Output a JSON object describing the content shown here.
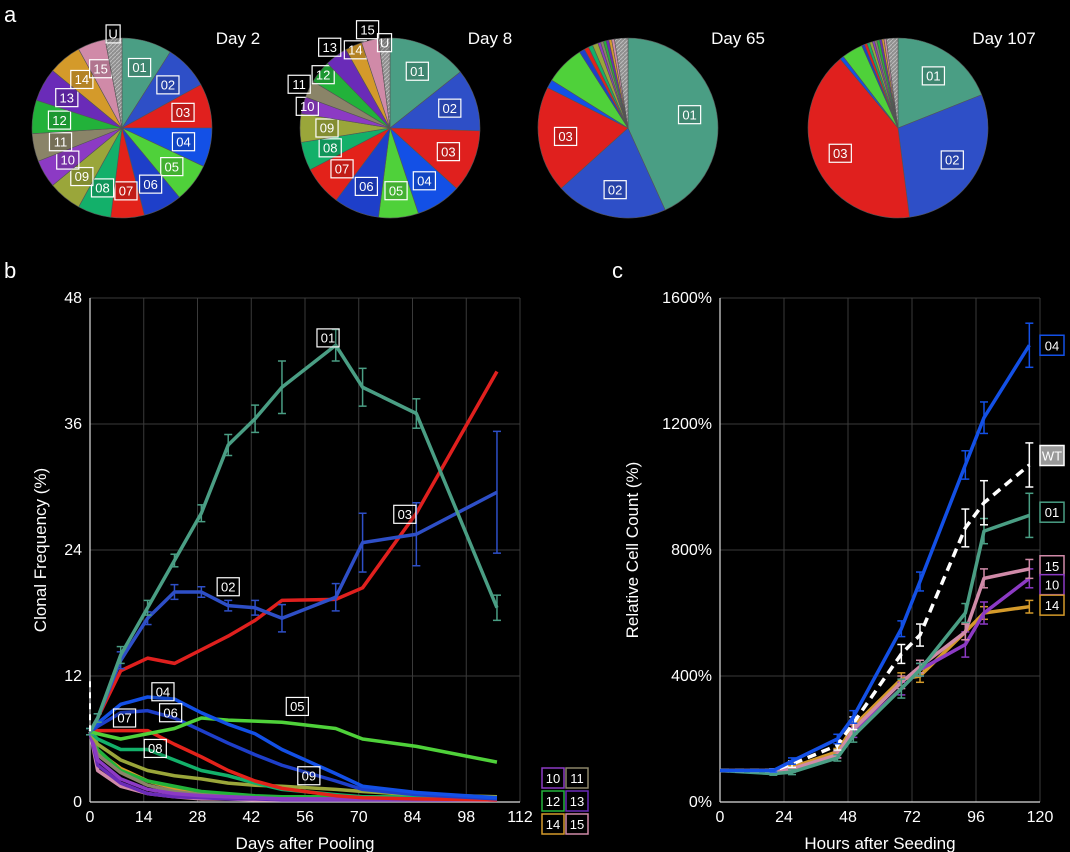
{
  "panel_labels": [
    "a",
    "b",
    "c"
  ],
  "colors": {
    "01": "#4a9e84",
    "02": "#2e4fc7",
    "03": "#e0201e",
    "04": "#1350e6",
    "05": "#4fd13a",
    "06": "#1e3fc9",
    "07": "#e3221a",
    "08": "#13b06a",
    "09": "#9aa63a",
    "10": "#8c3ac4",
    "11": "#8a8468",
    "12": "#22b23a",
    "13": "#6a2bb8",
    "14": "#d49a2a",
    "15": "#d08aa8",
    "U": "#9a9a9a",
    "WT": "#ffffff"
  },
  "chart_data": [
    {
      "type": "pie",
      "title": "Day 2",
      "categories": [
        "01",
        "02",
        "03",
        "04",
        "05",
        "06",
        "07",
        "08",
        "09",
        "10",
        "11",
        "12",
        "13",
        "14",
        "15",
        "U"
      ],
      "values": [
        9,
        8,
        8,
        7,
        7,
        7,
        6,
        6,
        6,
        5,
        5,
        6,
        6,
        6,
        5,
        3
      ]
    },
    {
      "type": "pie",
      "title": "Day 8",
      "categories": [
        "01",
        "02",
        "03",
        "04",
        "05",
        "06",
        "07",
        "08",
        "09",
        "10",
        "11",
        "12",
        "13",
        "14",
        "15",
        "U"
      ],
      "values": [
        14,
        11,
        11,
        8,
        7,
        8,
        7,
        5,
        5,
        3,
        3,
        4,
        4,
        3,
        3,
        2
      ]
    },
    {
      "type": "pie",
      "title": "Day 65",
      "categories": [
        "01",
        "02",
        "03",
        "04",
        "05",
        "06",
        "07",
        "08",
        "09",
        "10",
        "11",
        "12",
        "13",
        "14",
        "15",
        "U"
      ],
      "values": [
        43,
        20,
        19,
        1.5,
        7,
        1,
        0.8,
        0.8,
        1,
        0.5,
        0.5,
        0.5,
        0.5,
        0.5,
        0.5,
        2.4
      ]
    },
    {
      "type": "pie",
      "title": "Day 107",
      "categories": [
        "01",
        "02",
        "03",
        "04",
        "05",
        "06",
        "07",
        "08",
        "09",
        "10",
        "11",
        "12",
        "13",
        "14",
        "15",
        "U"
      ],
      "values": [
        19,
        29,
        41,
        0.7,
        3.8,
        0.5,
        0.5,
        0.5,
        0.5,
        0.4,
        0.4,
        0.5,
        0.4,
        0.4,
        0.4,
        2.1
      ]
    },
    {
      "type": "line",
      "xlabel": "Days after Pooling",
      "ylabel": "Clonal Frequency (%)",
      "xlim": [
        0,
        112
      ],
      "ylim": [
        0,
        48
      ],
      "xticks": [
        "0",
        "14",
        "28",
        "42",
        "56",
        "70",
        "84",
        "98",
        "112"
      ],
      "yticks": [
        "0",
        "12",
        "24",
        "36",
        "48"
      ],
      "grid": true,
      "legend_labels": [
        "10",
        "11",
        "12",
        "13",
        "14",
        "15"
      ],
      "series": [
        {
          "name": "01",
          "x": [
            0,
            2,
            8,
            15,
            22,
            29,
            36,
            43,
            50,
            64,
            71,
            85,
            106
          ],
          "y": [
            6.7,
            8,
            14,
            18.5,
            23,
            27.5,
            34,
            36.5,
            39.5,
            43.5,
            39.5,
            37,
            18.5
          ],
          "err": [
            0.3,
            0.4,
            0.8,
            0.7,
            0.6,
            0.8,
            1,
            1.3,
            2.5,
            1.5,
            1.8,
            1.4,
            1.2
          ]
        },
        {
          "name": "02",
          "x": [
            0,
            2,
            8,
            15,
            22,
            29,
            36,
            43,
            50,
            64,
            71,
            85,
            106
          ],
          "y": [
            6.7,
            8,
            13.5,
            17.5,
            20,
            20,
            18.7,
            18.5,
            17.5,
            19.5,
            24.7,
            25.5,
            29.5
          ],
          "err": [
            0.3,
            0.4,
            0.8,
            0.6,
            0.7,
            0.5,
            0.5,
            0.7,
            1.3,
            1.3,
            2.8,
            3,
            5.8
          ]
        },
        {
          "name": "03",
          "x": [
            0,
            2,
            8,
            15,
            22,
            29,
            36,
            43,
            50,
            64,
            71,
            85,
            106
          ],
          "y": [
            6.7,
            8,
            12.5,
            13.7,
            13.2,
            14.5,
            15.8,
            17.3,
            19.2,
            19.3,
            20.4,
            27.5,
            41
          ]
        },
        {
          "name": "04",
          "x": [
            0,
            2,
            8,
            15,
            22,
            29,
            36,
            43,
            50,
            64,
            71,
            85,
            106
          ],
          "y": [
            6.7,
            7.5,
            9.3,
            10,
            9.8,
            8.5,
            7.4,
            6.5,
            5,
            2.7,
            1.5,
            0.9,
            0.4
          ]
        },
        {
          "name": "05",
          "x": [
            0,
            2,
            8,
            15,
            22,
            29,
            36,
            43,
            50,
            64,
            71,
            85,
            106
          ],
          "y": [
            6.7,
            6.5,
            6,
            6.5,
            7,
            8,
            7.8,
            7.7,
            7.6,
            7,
            6,
            5.3,
            3.8
          ]
        },
        {
          "name": "06",
          "x": [
            0,
            2,
            8,
            15,
            22,
            29,
            36,
            43,
            50,
            64,
            71,
            85,
            106
          ],
          "y": [
            6.7,
            7.2,
            8.5,
            8.7,
            8,
            6.8,
            5.6,
            4.5,
            3.5,
            2,
            1.2,
            0.7,
            0.3
          ]
        },
        {
          "name": "07",
          "x": [
            0,
            2,
            8,
            15,
            22,
            29,
            36,
            43,
            50,
            64,
            71,
            85,
            106
          ],
          "y": [
            6.7,
            6.8,
            6.8,
            6.8,
            5.5,
            4.3,
            3,
            2,
            1.3,
            0.6,
            0.4,
            0.3,
            0.2
          ]
        },
        {
          "name": "08",
          "x": [
            0,
            2,
            8,
            15,
            22,
            29,
            36,
            43,
            50,
            64,
            71,
            85,
            106
          ],
          "y": [
            6.7,
            6,
            5,
            5,
            4,
            3,
            2.5,
            1.8,
            1.2,
            0.7,
            0.5,
            0.4,
            0.3
          ]
        },
        {
          "name": "09",
          "x": [
            0,
            2,
            8,
            15,
            22,
            29,
            36,
            43,
            50,
            64,
            71,
            85,
            106
          ],
          "y": [
            6.7,
            5.5,
            4,
            3,
            2.5,
            2.2,
            1.8,
            1.6,
            1.5,
            1.2,
            1,
            0.7,
            0.5
          ]
        },
        {
          "name": "10",
          "x": [
            0,
            2,
            8,
            15,
            22,
            29,
            36,
            43,
            50,
            64,
            71,
            85,
            106
          ],
          "y": [
            6.7,
            4,
            2.2,
            1.2,
            0.8,
            0.6,
            0.5,
            0.4,
            0.3,
            0.3,
            0.3,
            0.3,
            0.2
          ]
        },
        {
          "name": "11",
          "x": [
            0,
            2,
            8,
            15,
            22,
            29,
            36,
            43,
            50,
            64,
            71,
            85,
            106
          ],
          "y": [
            6.7,
            4.5,
            2.8,
            1.6,
            1,
            0.7,
            0.5,
            0.4,
            0.3,
            0.3,
            0.3,
            0.3,
            0.2
          ]
        },
        {
          "name": "12",
          "x": [
            0,
            2,
            8,
            15,
            22,
            29,
            36,
            43,
            50,
            64,
            71,
            85,
            106
          ],
          "y": [
            6.7,
            5,
            3,
            2,
            1.5,
            1,
            0.8,
            0.6,
            0.5,
            0.5,
            0.5,
            0.5,
            0.4
          ]
        },
        {
          "name": "13",
          "x": [
            0,
            2,
            8,
            15,
            22,
            29,
            36,
            43,
            50,
            64,
            71,
            85,
            106
          ],
          "y": [
            6.7,
            3.5,
            1.8,
            0.8,
            0.5,
            0.4,
            0.3,
            0.3,
            0.2,
            0.2,
            0.2,
            0.2,
            0.2
          ]
        },
        {
          "name": "14",
          "x": [
            0,
            2,
            8,
            15,
            22,
            29,
            36,
            43,
            50,
            64,
            71,
            85,
            106
          ],
          "y": [
            6.7,
            4.8,
            3.2,
            2,
            1.3,
            0.9,
            0.6,
            0.5,
            0.4,
            0.3,
            0.3,
            0.3,
            0.2
          ]
        },
        {
          "name": "15",
          "x": [
            0,
            2,
            8,
            15,
            22,
            29,
            36,
            43,
            50,
            64,
            71,
            85,
            106
          ],
          "y": [
            6.7,
            3,
            1.5,
            0.8,
            0.5,
            0.3,
            0.3,
            0.2,
            0.2,
            0.2,
            0.2,
            0.2,
            0.2
          ]
        }
      ]
    },
    {
      "type": "line",
      "xlabel": "Hours after Seeding",
      "ylabel": "Relative Cell Count (%)",
      "xlim": [
        0,
        120
      ],
      "ylim": [
        0,
        1600
      ],
      "xticks": [
        "0",
        "24",
        "48",
        "72",
        "96",
        "120"
      ],
      "yticks": [
        "0%",
        "400%",
        "800%",
        "1200%",
        "1600%"
      ],
      "grid": true,
      "series": [
        {
          "name": "04",
          "x": [
            0,
            20,
            27,
            44,
            50,
            68,
            75,
            92,
            99,
            116
          ],
          "y": [
            100,
            100,
            130,
            200,
            270,
            550,
            700,
            1070,
            1220,
            1450
          ],
          "err": [
            0,
            5,
            10,
            15,
            20,
            25,
            30,
            45,
            50,
            70
          ]
        },
        {
          "name": "WT",
          "dashed": true,
          "x": [
            0,
            20,
            27,
            44,
            50,
            68,
            75,
            92,
            99,
            116
          ],
          "y": [
            100,
            100,
            120,
            180,
            250,
            470,
            530,
            870,
            950,
            1070
          ],
          "err": [
            0,
            5,
            10,
            15,
            20,
            30,
            35,
            60,
            70,
            70
          ]
        },
        {
          "name": "01",
          "x": [
            0,
            20,
            27,
            44,
            50,
            68,
            75,
            92,
            99,
            116
          ],
          "y": [
            100,
            90,
            95,
            140,
            210,
            360,
            420,
            600,
            860,
            910
          ],
          "err": [
            0,
            5,
            8,
            10,
            20,
            30,
            20,
            30,
            40,
            70
          ]
        },
        {
          "name": "15",
          "x": [
            0,
            20,
            27,
            44,
            50,
            68,
            75,
            92,
            99,
            116
          ],
          "y": [
            100,
            100,
            105,
            150,
            230,
            380,
            430,
            540,
            710,
            740
          ],
          "err": [
            0,
            5,
            5,
            10,
            15,
            20,
            20,
            25,
            30,
            30
          ]
        },
        {
          "name": "10",
          "x": [
            0,
            20,
            27,
            44,
            50,
            68,
            75,
            92,
            99,
            116
          ],
          "y": [
            100,
            95,
            100,
            150,
            220,
            360,
            420,
            500,
            600,
            710
          ],
          "err": [
            0,
            5,
            5,
            10,
            15,
            20,
            20,
            40,
            35,
            30
          ]
        },
        {
          "name": "14",
          "x": [
            0,
            20,
            27,
            44,
            50,
            68,
            75,
            92,
            99,
            116
          ],
          "y": [
            100,
            100,
            110,
            160,
            240,
            390,
            400,
            540,
            600,
            620
          ],
          "err": [
            0,
            5,
            5,
            10,
            15,
            20,
            20,
            25,
            20,
            20
          ]
        }
      ]
    }
  ]
}
